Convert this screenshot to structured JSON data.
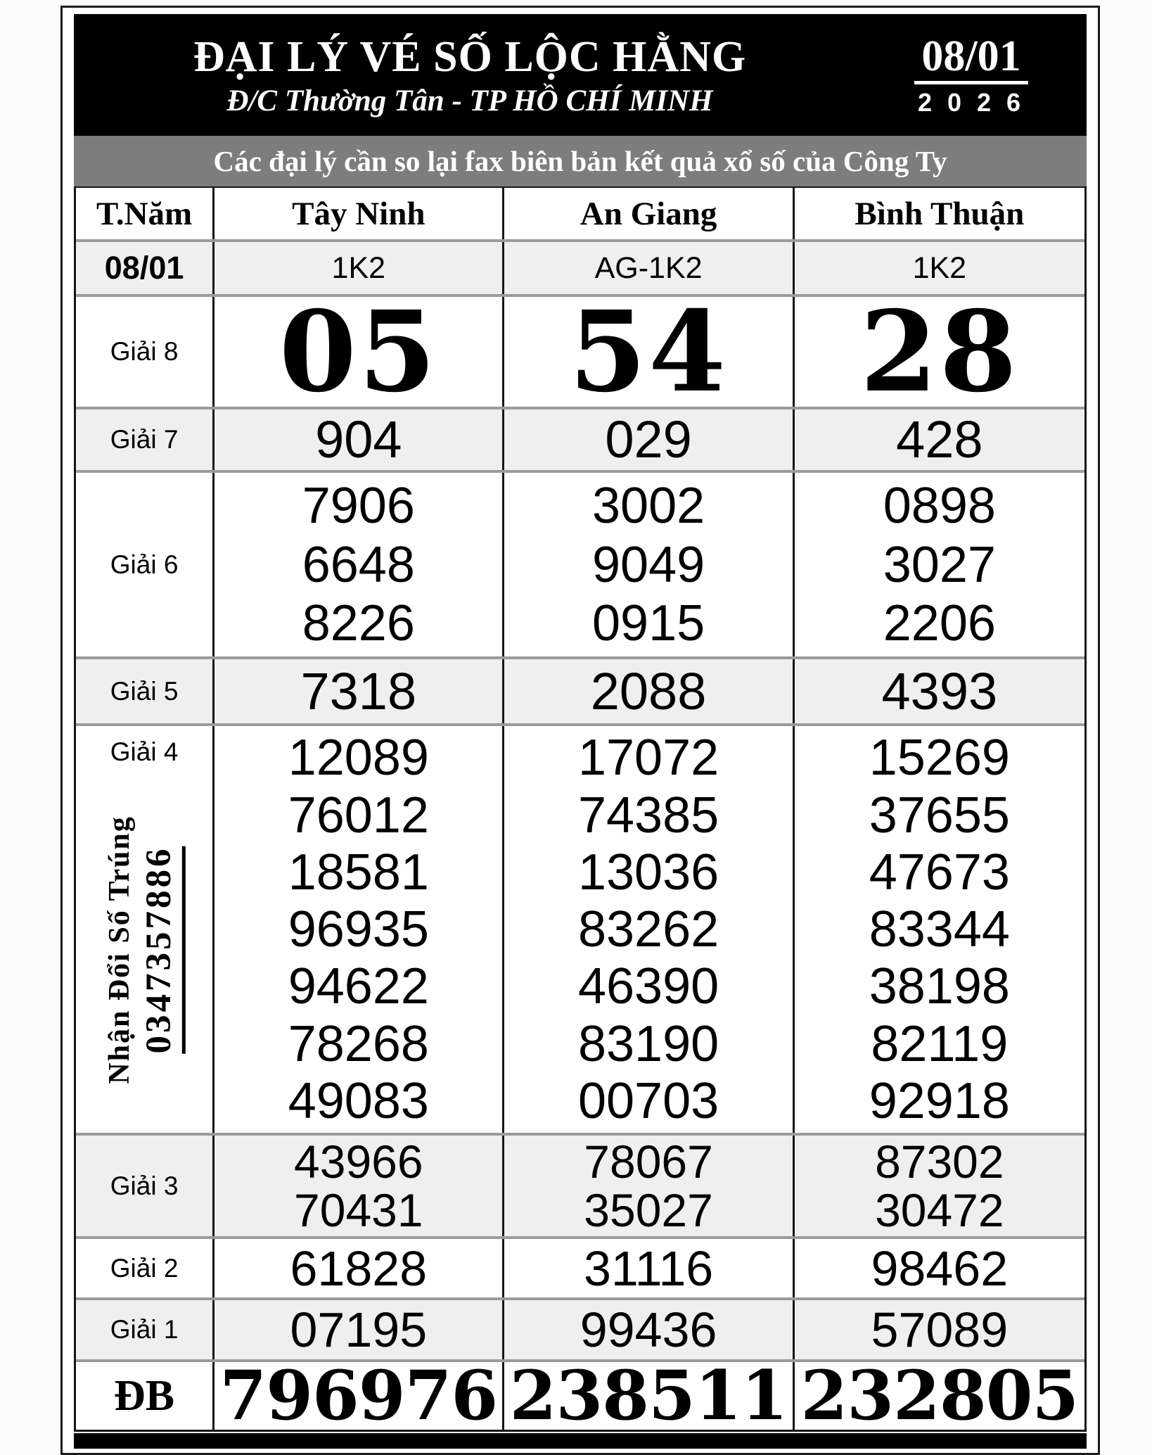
{
  "header": {
    "title": "ĐẠI LÝ VÉ SỐ LỘC HẰNG",
    "subtitle": "Đ/C Thường Tân - TP HỒ CHÍ MINH",
    "date": "08/01",
    "year": "2026"
  },
  "notice": {
    "text": "Các đại lý cần so lại fax biên bản kết quả xổ số của Công Ty"
  },
  "side_note": {
    "text": "Nhận Đổi Số Trúng",
    "phone": "0347357886"
  },
  "colors": {
    "header_bg": "#000000",
    "notice_bg": "#7d7d7d",
    "row_alt_bg": "#efefef"
  },
  "table": {
    "corner_label": "T.Năm",
    "provinces": [
      "Tây Ninh",
      "An Giang",
      "Bình Thuận"
    ],
    "date_label": "08/01",
    "codes": [
      "1K2",
      "AG-1K2",
      "1K2"
    ],
    "prizes": [
      {
        "label": "Giải 8",
        "values": [
          [
            "05"
          ],
          [
            "54"
          ],
          [
            "28"
          ]
        ]
      },
      {
        "label": "Giải 7",
        "values": [
          [
            "904"
          ],
          [
            "029"
          ],
          [
            "428"
          ]
        ]
      },
      {
        "label": "Giải 6",
        "values": [
          [
            "7906",
            "6648",
            "8226"
          ],
          [
            "3002",
            "9049",
            "0915"
          ],
          [
            "0898",
            "3027",
            "2206"
          ]
        ]
      },
      {
        "label": "Giải 5",
        "values": [
          [
            "7318"
          ],
          [
            "2088"
          ],
          [
            "4393"
          ]
        ]
      },
      {
        "label": "Giải 4",
        "values": [
          [
            "12089",
            "76012",
            "18581",
            "96935",
            "94622",
            "78268",
            "49083"
          ],
          [
            "17072",
            "74385",
            "13036",
            "83262",
            "46390",
            "83190",
            "00703"
          ],
          [
            "15269",
            "37655",
            "47673",
            "83344",
            "38198",
            "82119",
            "92918"
          ]
        ]
      },
      {
        "label": "Giải 3",
        "values": [
          [
            "43966",
            "70431"
          ],
          [
            "78067",
            "35027"
          ],
          [
            "87302",
            "30472"
          ]
        ]
      },
      {
        "label": "Giải 2",
        "values": [
          [
            "61828"
          ],
          [
            "31116"
          ],
          [
            "98462"
          ]
        ]
      },
      {
        "label": "Giải 1",
        "values": [
          [
            "07195"
          ],
          [
            "99436"
          ],
          [
            "57089"
          ]
        ]
      },
      {
        "label": "ĐB",
        "values": [
          [
            "796976"
          ],
          [
            "238511"
          ],
          [
            "232805"
          ]
        ]
      }
    ]
  }
}
